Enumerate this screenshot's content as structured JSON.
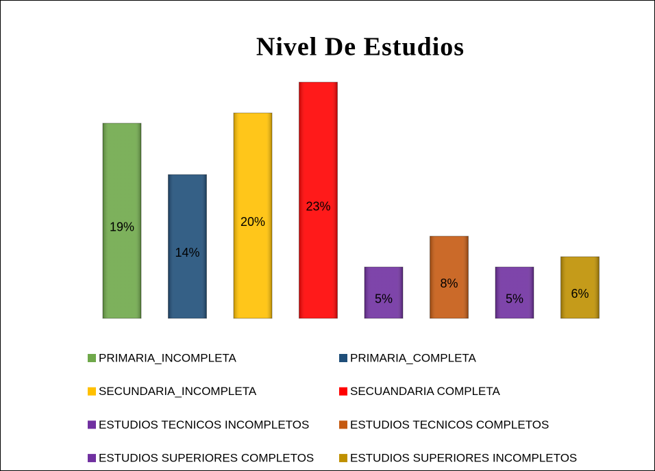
{
  "chart_data": {
    "type": "bar",
    "title": "Nivel De Estudios",
    "categories": [
      "PRIMARIA_INCOMPLETA",
      "PRIMARIA_COMPLETA",
      "SECUNDARIA_INCOMPLETA",
      "SECUANDARIA COMPLETA",
      "ESTUDIOS TECNICOS INCOMPLETOS",
      "ESTUDIOS TECNICOS COMPLETOS",
      "ESTUDIOS SUPERIORES COMPLETOS",
      "ESTUDIOS SUPERIORES INCOMPLETOS"
    ],
    "values": [
      19,
      14,
      20,
      23,
      5,
      8,
      5,
      6
    ],
    "value_labels": [
      "19%",
      "14%",
      "20%",
      "23%",
      "5%",
      "8%",
      "5%",
      "6%"
    ],
    "colors": [
      "#6fa84a",
      "#1f4e79",
      "#ffc000",
      "#ff0000",
      "#7030a0",
      "#c55a11",
      "#7030a0",
      "#bf9000"
    ]
  }
}
